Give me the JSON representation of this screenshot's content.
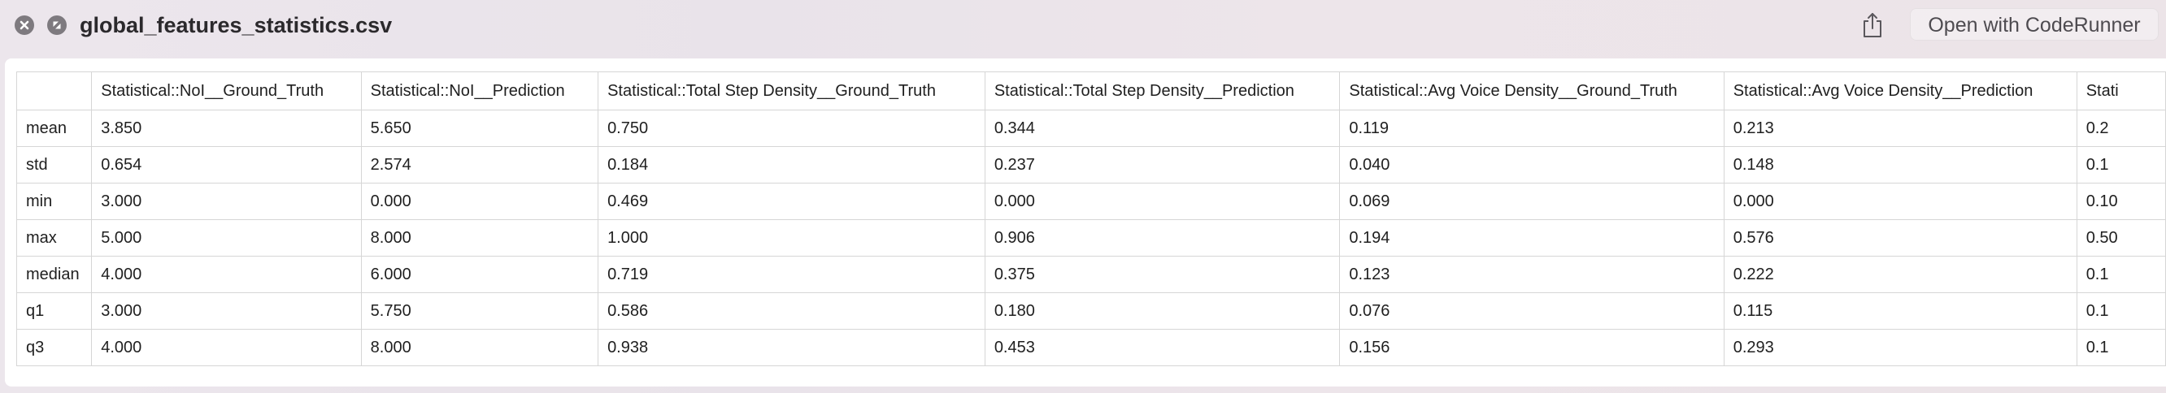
{
  "window": {
    "title": "global_features_statistics.csv",
    "open_with_label": "Open with CodeRunner",
    "icons": {
      "close": "close-icon",
      "fullscreen": "fullscreen-icon",
      "share": "share-icon"
    }
  },
  "table": {
    "headers": [
      "",
      "Statistical::NoI__Ground_Truth",
      "Statistical::NoI__Prediction",
      "Statistical::Total Step Density__Ground_Truth",
      "Statistical::Total Step Density__Prediction",
      "Statistical::Avg Voice Density__Ground_Truth",
      "Statistical::Avg Voice Density__Prediction",
      "Stati"
    ],
    "rows": [
      [
        "mean",
        "3.850",
        "5.650",
        "0.750",
        "0.344",
        "0.119",
        "0.213",
        "0.2"
      ],
      [
        "std",
        "0.654",
        "2.574",
        "0.184",
        "0.237",
        "0.040",
        "0.148",
        "0.1"
      ],
      [
        "min",
        "3.000",
        "0.000",
        "0.469",
        "0.000",
        "0.069",
        "0.000",
        "0.10"
      ],
      [
        "max",
        "5.000",
        "8.000",
        "1.000",
        "0.906",
        "0.194",
        "0.576",
        "0.50"
      ],
      [
        "median",
        "4.000",
        "6.000",
        "0.719",
        "0.375",
        "0.123",
        "0.222",
        "0.1"
      ],
      [
        "q1",
        "3.000",
        "5.750",
        "0.586",
        "0.180",
        "0.076",
        "0.115",
        "0.1"
      ],
      [
        "q3",
        "4.000",
        "8.000",
        "0.938",
        "0.453",
        "0.156",
        "0.293",
        "0.1"
      ]
    ]
  }
}
